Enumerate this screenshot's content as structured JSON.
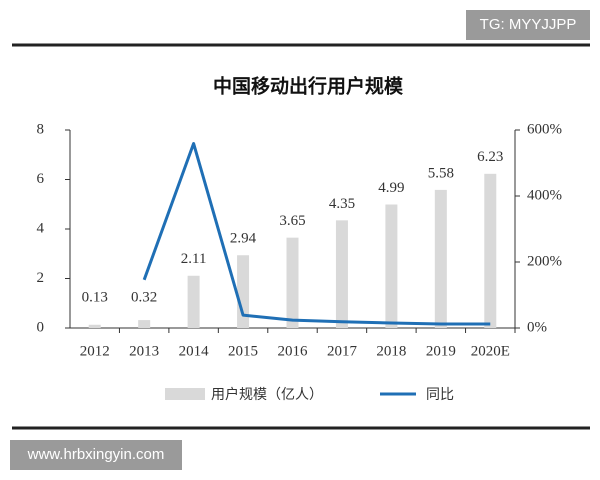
{
  "chart_data": {
    "type": "bar",
    "title": "中国移动出行用户规模",
    "categories": [
      "2012",
      "2013",
      "2014",
      "2015",
      "2016",
      "2017",
      "2018",
      "2019",
      "2020E"
    ],
    "series": [
      {
        "name": "用户规模（亿人）",
        "type": "bar",
        "color": "#d9d9d9",
        "values": [
          0.13,
          0.32,
          2.11,
          2.94,
          3.65,
          4.35,
          4.99,
          5.58,
          6.23
        ]
      },
      {
        "name": "同比",
        "type": "line",
        "axis": "y2",
        "color": "#1f6fb5",
        "values": [
          null,
          146,
          559,
          39,
          24,
          19,
          15,
          12,
          12
        ]
      }
    ],
    "ylim": [
      0,
      8
    ],
    "yticks": [
      0,
      2,
      4,
      6,
      8
    ],
    "y2lim": [
      0,
      600
    ],
    "y2ticks": [
      {
        "value": 0,
        "label": "0%"
      },
      {
        "value": 200,
        "label": "200%"
      },
      {
        "value": 400,
        "label": "400%"
      },
      {
        "value": 600,
        "label": "600%"
      }
    ],
    "grid": false,
    "legend": "bottom"
  },
  "watermarks": [
    "TG: MYYJJPP",
    "www.hrbxingyin.com"
  ]
}
